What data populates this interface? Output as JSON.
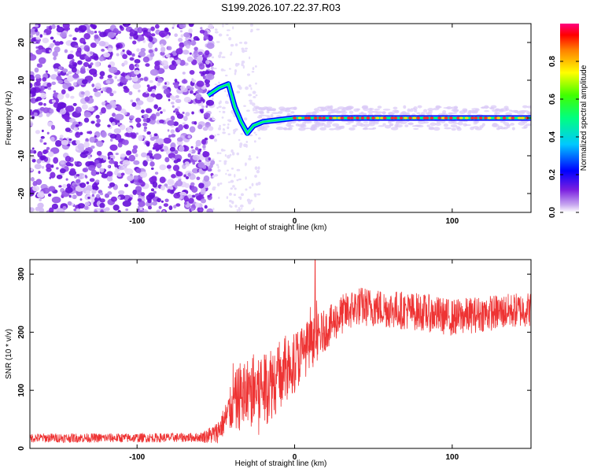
{
  "title": "S199.2026.107.22.37.R03",
  "chart_data": [
    {
      "type": "heatmap",
      "name": "spectrogram",
      "xlabel": "Height of straight line (km)",
      "ylabel": "Frequency (Hz)",
      "xlim": [
        -168,
        150
      ],
      "ylim": [
        -25,
        25
      ],
      "xticks": [
        -100,
        0,
        100
      ],
      "yticks": [
        -20,
        -10,
        0,
        10,
        20
      ],
      "colorbar": {
        "label": "Normalized spectral amplitude",
        "range": [
          0,
          1
        ],
        "ticks": [
          0.0,
          0.2,
          0.4,
          0.6,
          0.8
        ]
      },
      "signal_trace": [
        {
          "x": -55,
          "y": 6
        },
        {
          "x": -48,
          "y": 8
        },
        {
          "x": -42,
          "y": 9
        },
        {
          "x": -38,
          "y": 3
        },
        {
          "x": -34,
          "y": -1
        },
        {
          "x": -30,
          "y": -4
        },
        {
          "x": -26,
          "y": -2
        },
        {
          "x": -20,
          "y": -1
        },
        {
          "x": -10,
          "y": -0.5
        },
        {
          "x": 0,
          "y": 0
        },
        {
          "x": 50,
          "y": 0
        },
        {
          "x": 100,
          "y": 0
        },
        {
          "x": 150,
          "y": 0
        }
      ]
    },
    {
      "type": "line",
      "name": "snr",
      "xlabel": "Height of straight line (km)",
      "ylabel": "SNR (10 * v/v)",
      "xlim": [
        -168,
        150
      ],
      "ylim": [
        0,
        325
      ],
      "xticks": [
        -100,
        0,
        100
      ],
      "yticks": [
        0,
        100,
        200,
        300
      ],
      "color": "#ee3333",
      "envelope": [
        {
          "x": -168,
          "y": 18
        },
        {
          "x": -100,
          "y": 18
        },
        {
          "x": -60,
          "y": 19
        },
        {
          "x": -50,
          "y": 25
        },
        {
          "x": -45,
          "y": 45
        },
        {
          "x": -40,
          "y": 70
        },
        {
          "x": -35,
          "y": 90
        },
        {
          "x": -30,
          "y": 95
        },
        {
          "x": -20,
          "y": 105
        },
        {
          "x": -10,
          "y": 125
        },
        {
          "x": 0,
          "y": 150
        },
        {
          "x": 10,
          "y": 180
        },
        {
          "x": 20,
          "y": 205
        },
        {
          "x": 30,
          "y": 230
        },
        {
          "x": 40,
          "y": 245
        },
        {
          "x": 60,
          "y": 240
        },
        {
          "x": 80,
          "y": 235
        },
        {
          "x": 100,
          "y": 225
        },
        {
          "x": 120,
          "y": 232
        },
        {
          "x": 150,
          "y": 240
        }
      ],
      "noise_amplitude": [
        {
          "x": -168,
          "y": 8
        },
        {
          "x": -60,
          "y": 8
        },
        {
          "x": -45,
          "y": 25
        },
        {
          "x": -35,
          "y": 60
        },
        {
          "x": -20,
          "y": 70
        },
        {
          "x": 0,
          "y": 55
        },
        {
          "x": 20,
          "y": 35
        },
        {
          "x": 150,
          "y": 30
        }
      ],
      "max_peak": {
        "x": 13,
        "y": 325
      }
    }
  ]
}
